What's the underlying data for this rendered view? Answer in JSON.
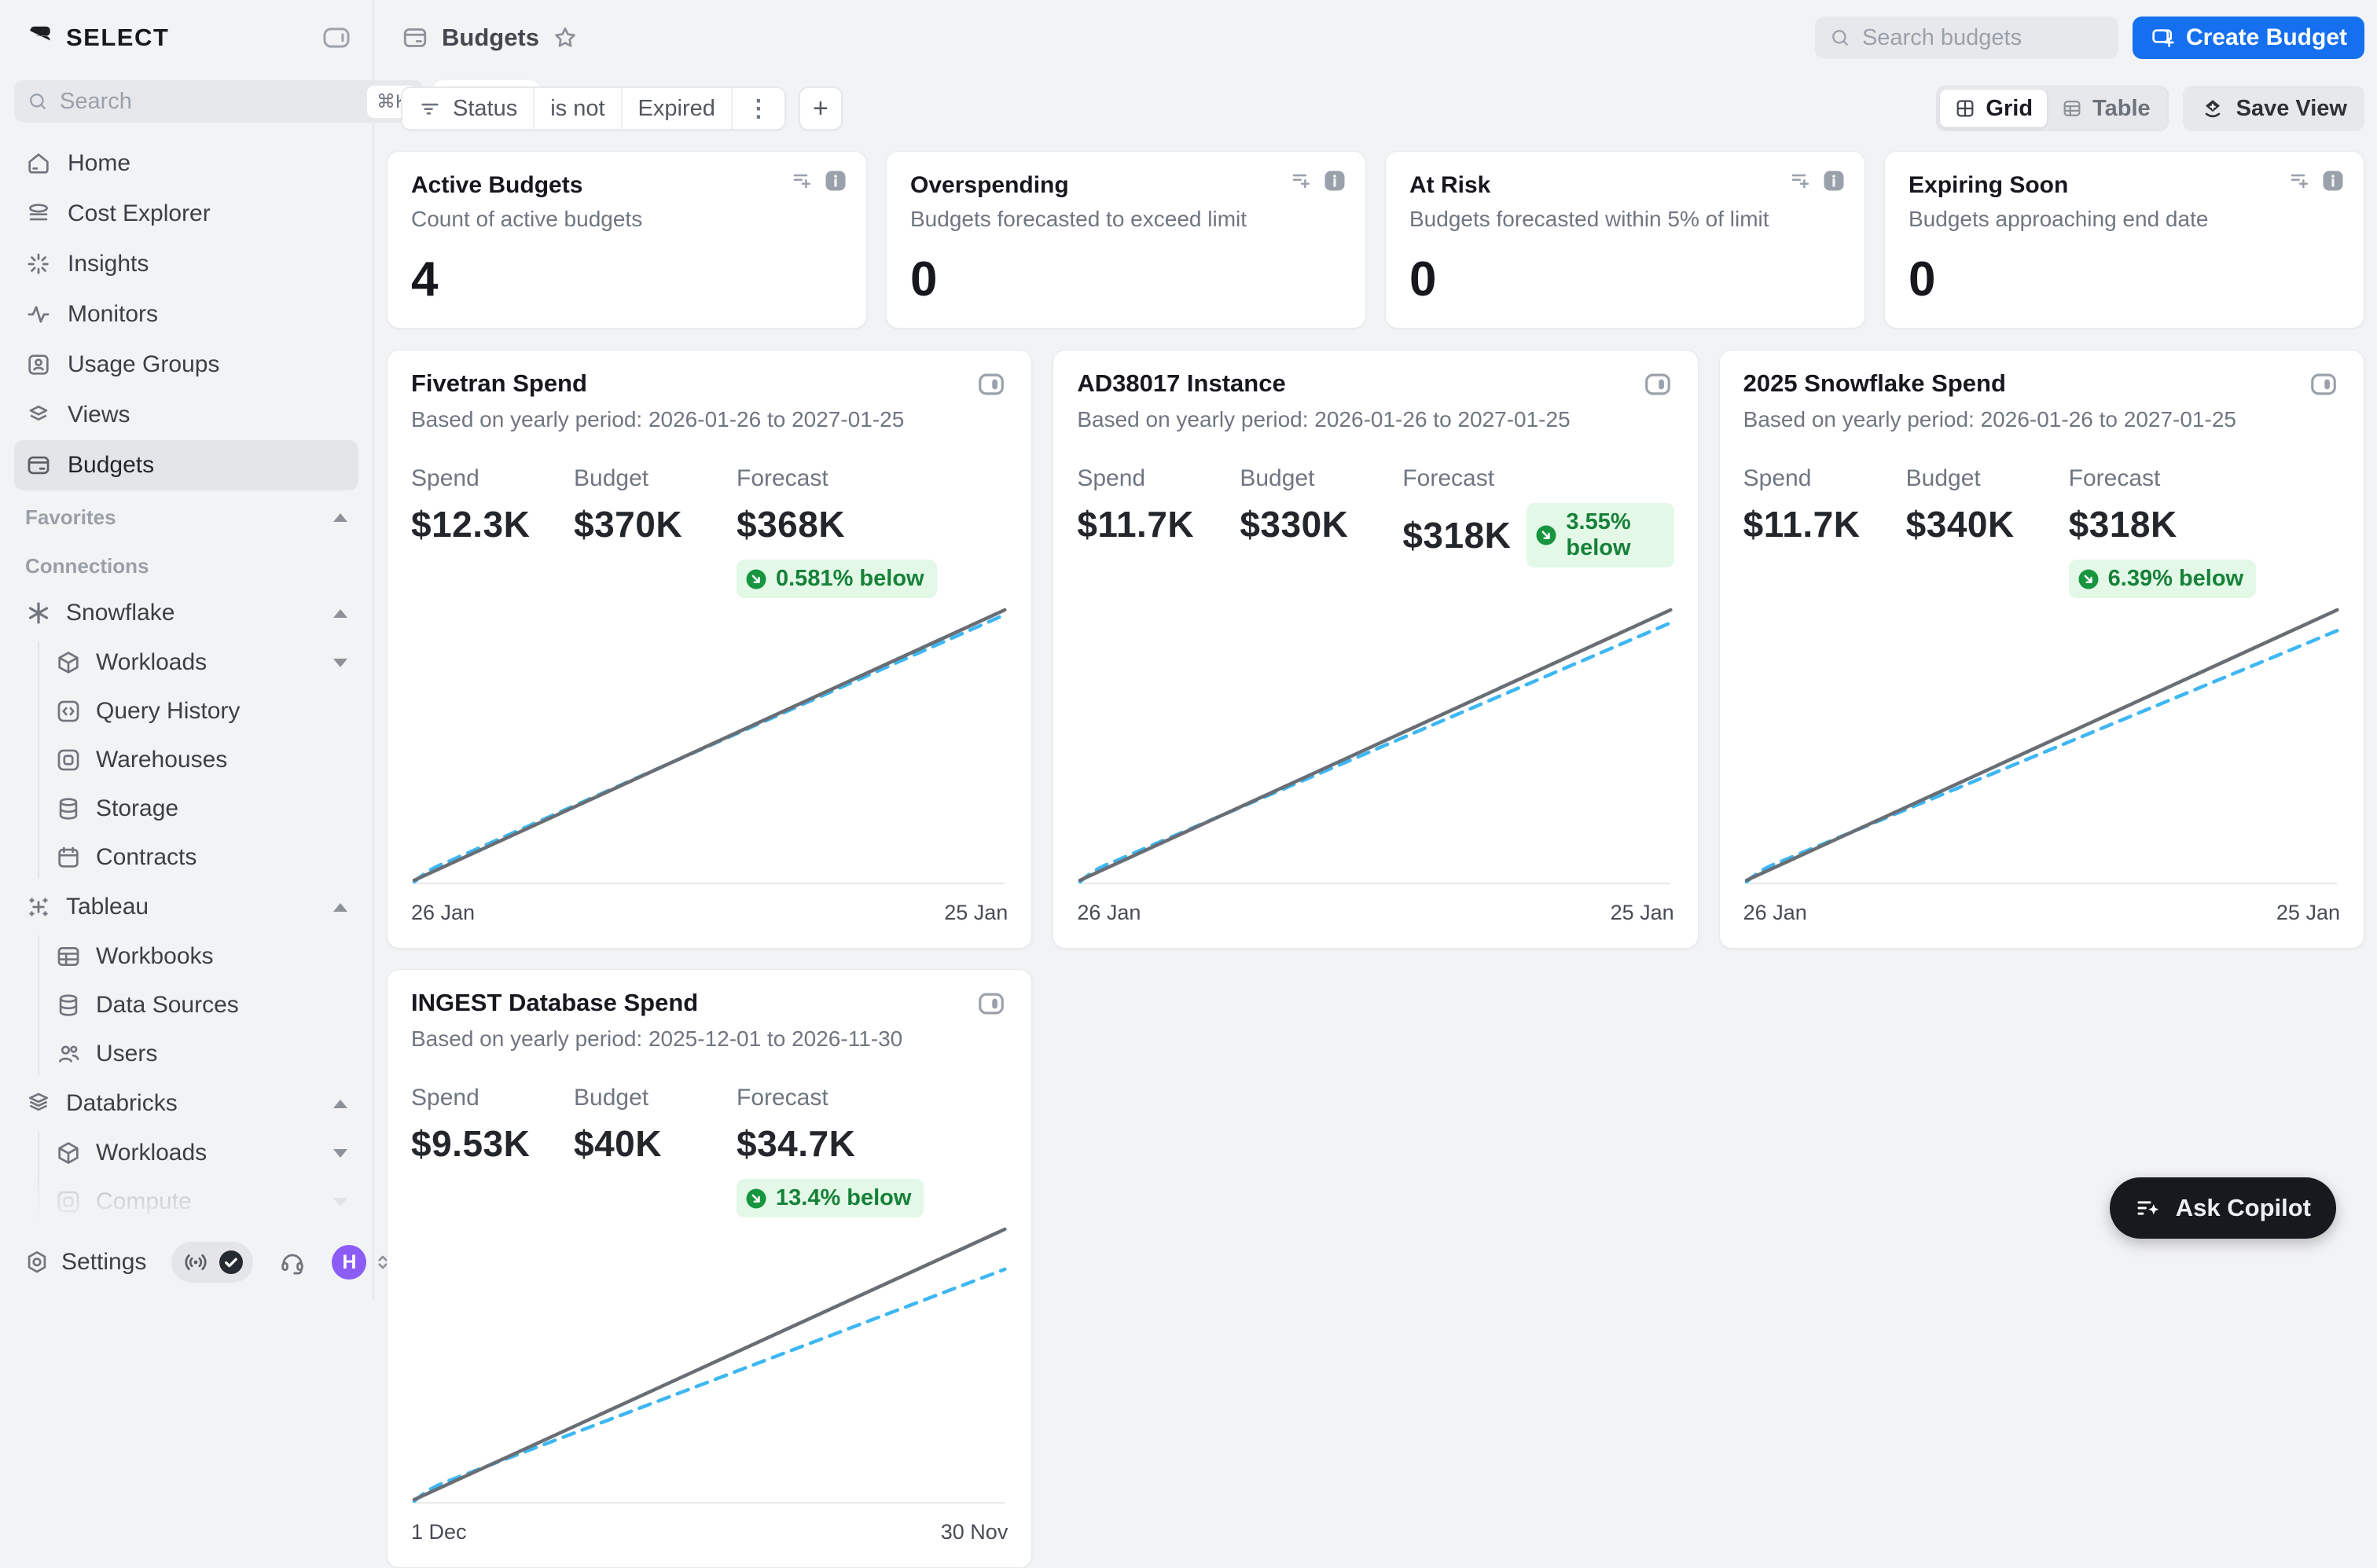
{
  "app": {
    "name": "SELECT"
  },
  "colors": {
    "accent_blue": "#1570ef",
    "green_text": "#168139",
    "green_bg": "#e3f8e7",
    "line_gray": "#696e75",
    "line_blue": "#3eb7f2",
    "avatar_purple": "#8b5cf6",
    "copilot_black": "#17191e"
  },
  "sidebar": {
    "logo": "SELECT",
    "search": {
      "placeholder": "Search",
      "shortcut": "⌘K"
    },
    "ask_label": "Ask",
    "items": [
      {
        "label": "Home"
      },
      {
        "label": "Cost Explorer"
      },
      {
        "label": "Insights"
      },
      {
        "label": "Monitors"
      },
      {
        "label": "Usage Groups"
      },
      {
        "label": "Views"
      },
      {
        "label": "Budgets",
        "active": true
      }
    ],
    "favorites_label": "Favorites",
    "connections_label": "Connections",
    "groups": {
      "snowflake": {
        "label": "Snowflake",
        "items": [
          {
            "label": "Workloads"
          },
          {
            "label": "Query History"
          },
          {
            "label": "Warehouses"
          },
          {
            "label": "Storage"
          },
          {
            "label": "Contracts"
          }
        ]
      },
      "tableau": {
        "label": "Tableau",
        "items": [
          {
            "label": "Workbooks"
          },
          {
            "label": "Data Sources"
          },
          {
            "label": "Users"
          }
        ]
      },
      "databricks": {
        "label": "Databricks",
        "items": [
          {
            "label": "Workloads"
          },
          {
            "label": "Compute"
          }
        ]
      }
    },
    "footer": {
      "settings_label": "Settings",
      "avatar_initial": "H"
    }
  },
  "header": {
    "title": "Budgets",
    "search_placeholder": "Search budgets",
    "create_label": "Create Budget"
  },
  "toolbar": {
    "filter": {
      "field": "Status",
      "operator": "is not",
      "value": "Expired"
    },
    "add_filter_label": "+",
    "view_toggle": {
      "grid": "Grid",
      "table": "Table"
    },
    "save_view_label": "Save View"
  },
  "stats": [
    {
      "title": "Active Budgets",
      "subtitle": "Count of active budgets",
      "value": "4"
    },
    {
      "title": "Overspending",
      "subtitle": "Budgets forecasted to exceed limit",
      "value": "0"
    },
    {
      "title": "At Risk",
      "subtitle": "Budgets forecasted within 5% of limit",
      "value": "0"
    },
    {
      "title": "Expiring Soon",
      "subtitle": "Budgets approaching end date",
      "value": "0"
    }
  ],
  "stat_labels": {
    "spend": "Spend",
    "budget": "Budget",
    "forecast": "Forecast"
  },
  "budgets": [
    {
      "title": "Fivetran Spend",
      "subtitle": "Based on yearly period: 2026-01-26 to 2027-01-25",
      "spend": "$12.3K",
      "budget": "$370K",
      "forecast": "$368K",
      "delta": "0.581% below",
      "axis_start": "26 Jan",
      "axis_end": "25 Jan",
      "chart": {
        "type": "line",
        "x": [
          "26 Jan",
          "25 Jan"
        ],
        "below_pct": 0.581,
        "series": [
          {
            "name": "Budget",
            "start": 0,
            "end": 370000
          },
          {
            "name": "Forecast",
            "start": 0,
            "end": 368000
          }
        ]
      }
    },
    {
      "title": "AD38017 Instance",
      "subtitle": "Based on yearly period: 2026-01-26 to 2027-01-25",
      "spend": "$11.7K",
      "budget": "$330K",
      "forecast": "$318K",
      "delta": "3.55% below",
      "axis_start": "26 Jan",
      "axis_end": "25 Jan",
      "chart": {
        "type": "line",
        "x": [
          "26 Jan",
          "25 Jan"
        ],
        "below_pct": 3.55,
        "series": [
          {
            "name": "Budget",
            "start": 0,
            "end": 330000
          },
          {
            "name": "Forecast",
            "start": 0,
            "end": 318000
          }
        ]
      }
    },
    {
      "title": "2025 Snowflake Spend",
      "subtitle": "Based on yearly period: 2026-01-26 to 2027-01-25",
      "spend": "$11.7K",
      "budget": "$340K",
      "forecast": "$318K",
      "delta": "6.39% below",
      "axis_start": "26 Jan",
      "axis_end": "25 Jan",
      "chart": {
        "type": "line",
        "x": [
          "26 Jan",
          "25 Jan"
        ],
        "below_pct": 6.39,
        "series": [
          {
            "name": "Budget",
            "start": 0,
            "end": 340000
          },
          {
            "name": "Forecast",
            "start": 0,
            "end": 318000
          }
        ]
      }
    },
    {
      "title": "INGEST Database Spend",
      "subtitle": "Based on yearly period: 2025-12-01 to 2026-11-30",
      "spend": "$9.53K",
      "budget": "$40K",
      "forecast": "$34.7K",
      "delta": "13.4% below",
      "axis_start": "1 Dec",
      "axis_end": "30 Nov",
      "chart": {
        "type": "line",
        "x": [
          "1 Dec",
          "30 Nov"
        ],
        "below_pct": 13.4,
        "series": [
          {
            "name": "Budget",
            "start": 0,
            "end": 40000
          },
          {
            "name": "Forecast",
            "start": 0,
            "end": 34700
          }
        ]
      }
    }
  ],
  "copilot_label": "Ask Copilot"
}
